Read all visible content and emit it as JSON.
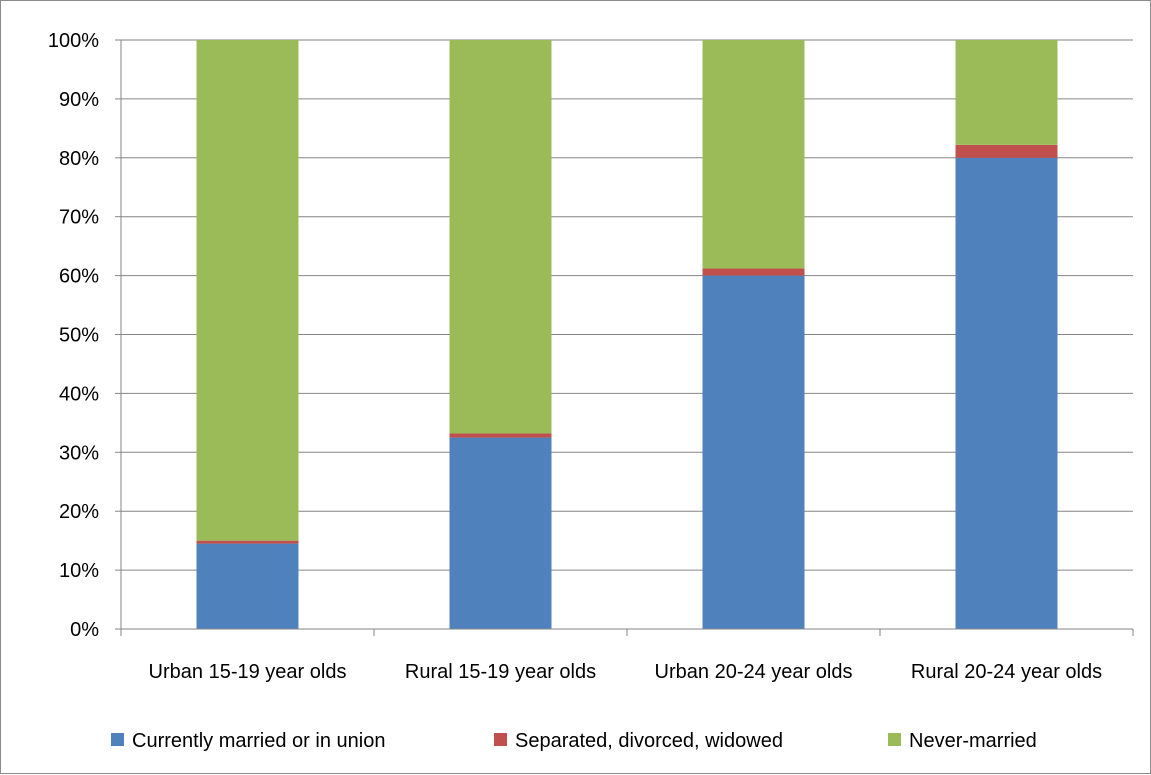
{
  "chart_data": {
    "type": "bar",
    "stacked": true,
    "categories": [
      "Urban 15-19 year olds",
      "Rural 15-19 year olds",
      "Urban 20-24 year olds",
      "Rural 20-24 year olds"
    ],
    "series": [
      {
        "name": "Currently married or in union",
        "color": "#4f81bd",
        "values": [
          14.5,
          32.5,
          60,
          80
        ]
      },
      {
        "name": "Separated, divorced, widowed",
        "color": "#c0504d",
        "values": [
          0.5,
          0.7,
          1.2,
          2.2
        ]
      },
      {
        "name": "Never-married",
        "color": "#9bbb59",
        "values": [
          85,
          66.8,
          38.8,
          17.8
        ]
      }
    ],
    "ylim": [
      0,
      100
    ],
    "yticks": [
      "0%",
      "10%",
      "20%",
      "30%",
      "40%",
      "50%",
      "60%",
      "70%",
      "80%",
      "90%",
      "100%"
    ],
    "grid": true,
    "legend_position": "bottom"
  }
}
